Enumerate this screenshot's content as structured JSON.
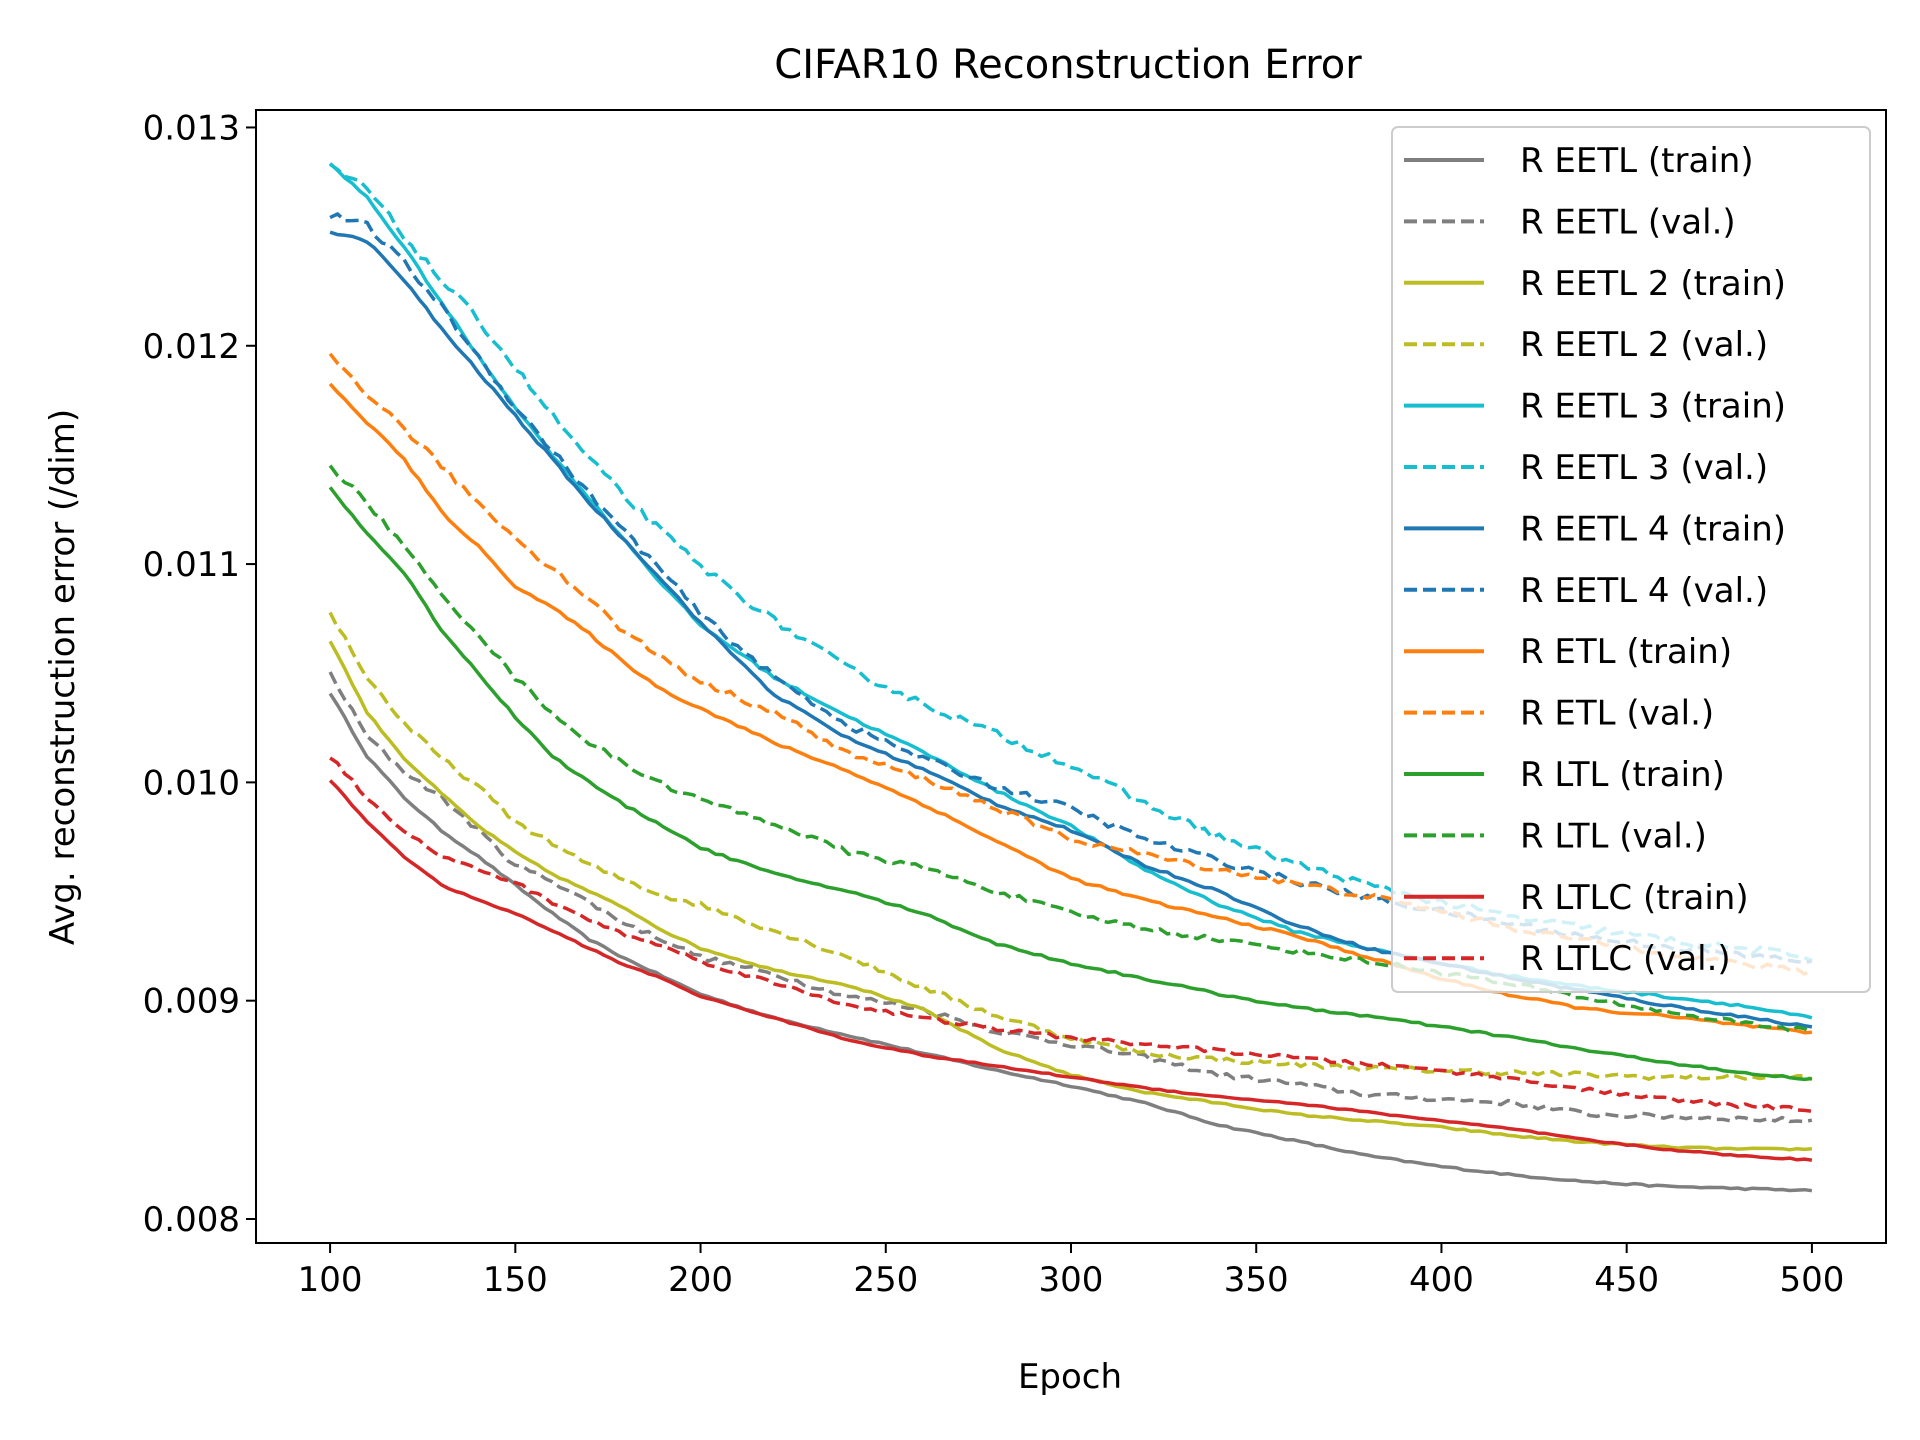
{
  "chart_data": {
    "type": "line",
    "title": "CIFAR10 Reconstruction Error",
    "xlabel": "Epoch",
    "ylabel": "Avg. reconstruction error (/dim)",
    "xlim": [
      80,
      520
    ],
    "ylim": [
      0.00789,
      0.01308
    ],
    "xticks": [
      100,
      150,
      200,
      250,
      300,
      350,
      400,
      450,
      500
    ],
    "yticks": [
      0.008,
      0.009,
      0.01,
      0.011,
      0.012,
      0.013
    ],
    "xtick_labels": [
      "100",
      "150",
      "200",
      "250",
      "300",
      "350",
      "400",
      "450",
      "500"
    ],
    "ytick_labels": [
      "0.008",
      "0.009",
      "0.010",
      "0.011",
      "0.012",
      "0.013"
    ],
    "grid": false,
    "legend_position": "top-right",
    "series": [
      {
        "name": "R EETL (train)",
        "color": "#7f7f7f",
        "dash": "solid",
        "noise": 0.2,
        "x": [
          100,
          110,
          120,
          130,
          140,
          150,
          160,
          170,
          180,
          190,
          200,
          220,
          240,
          260,
          280,
          300,
          320,
          340,
          360,
          380,
          400,
          420,
          440,
          460,
          480,
          500
        ],
        "y": [
          0.01041,
          0.01012,
          0.00993,
          0.00978,
          0.00966,
          0.00953,
          0.0094,
          0.00928,
          0.00919,
          0.00911,
          0.00903,
          0.00892,
          0.00884,
          0.00876,
          0.00868,
          0.00861,
          0.00853,
          0.00843,
          0.00836,
          0.00829,
          0.00824,
          0.0082,
          0.00817,
          0.00815,
          0.00814,
          0.00813
        ]
      },
      {
        "name": "R EETL (val.)",
        "color": "#7f7f7f",
        "dash": "dashed",
        "noise": 0.6,
        "x": [
          100,
          110,
          120,
          130,
          140,
          150,
          160,
          170,
          180,
          190,
          200,
          220,
          240,
          260,
          280,
          300,
          320,
          340,
          360,
          380,
          400,
          420,
          440,
          460,
          480,
          500
        ],
        "y": [
          0.0105,
          0.01021,
          0.01005,
          0.00993,
          0.00978,
          0.00962,
          0.00955,
          0.00945,
          0.00935,
          0.00928,
          0.0092,
          0.00912,
          0.00902,
          0.00896,
          0.00886,
          0.0088,
          0.00874,
          0.00866,
          0.00862,
          0.00857,
          0.00855,
          0.00853,
          0.00848,
          0.00847,
          0.00846,
          0.00845
        ]
      },
      {
        "name": "R EETL 2 (train)",
        "color": "#bcbd22",
        "dash": "solid",
        "noise": 0.2,
        "x": [
          100,
          110,
          120,
          130,
          140,
          150,
          160,
          170,
          180,
          190,
          200,
          220,
          240,
          260,
          280,
          300,
          320,
          340,
          360,
          380,
          400,
          420,
          440,
          460,
          480,
          500
        ],
        "y": [
          0.01065,
          0.01032,
          0.01011,
          0.00995,
          0.0098,
          0.00968,
          0.00958,
          0.0095,
          0.00942,
          0.00932,
          0.00924,
          0.00914,
          0.00907,
          0.00896,
          0.00878,
          0.00866,
          0.00858,
          0.00853,
          0.00848,
          0.00845,
          0.00842,
          0.00838,
          0.00835,
          0.00833,
          0.00832,
          0.00832
        ]
      },
      {
        "name": "R EETL 2 (val.)",
        "color": "#bcbd22",
        "dash": "dashed",
        "noise": 0.6,
        "x": [
          100,
          110,
          120,
          130,
          140,
          150,
          160,
          170,
          180,
          190,
          200,
          220,
          240,
          260,
          280,
          300,
          320,
          340,
          360,
          380,
          400,
          420,
          440,
          460,
          480,
          500
        ],
        "y": [
          0.01078,
          0.01048,
          0.01027,
          0.01011,
          0.00998,
          0.00982,
          0.00972,
          0.00962,
          0.00955,
          0.00948,
          0.00944,
          0.00932,
          0.0092,
          0.00906,
          0.00893,
          0.00883,
          0.00876,
          0.00873,
          0.00871,
          0.00869,
          0.00868,
          0.00867,
          0.00866,
          0.00865,
          0.00865,
          0.00865
        ]
      },
      {
        "name": "R EETL 3 (train)",
        "color": "#17becf",
        "dash": "solid",
        "noise": 0.3,
        "x": [
          100,
          110,
          120,
          130,
          140,
          150,
          160,
          170,
          180,
          190,
          200,
          220,
          240,
          260,
          280,
          300,
          320,
          340,
          360,
          380,
          400,
          420,
          440,
          460,
          480,
          500
        ],
        "y": [
          0.01283,
          0.01268,
          0.01245,
          0.0122,
          0.01195,
          0.01172,
          0.0115,
          0.0113,
          0.0111,
          0.0109,
          0.01072,
          0.01048,
          0.0103,
          0.01014,
          0.00996,
          0.0098,
          0.0096,
          0.00944,
          0.00932,
          0.00924,
          0.00917,
          0.00911,
          0.00906,
          0.00902,
          0.00898,
          0.00892
        ]
      },
      {
        "name": "R EETL 3 (val.)",
        "color": "#17becf",
        "dash": "dashed",
        "noise": 0.9,
        "x": [
          100,
          110,
          120,
          130,
          140,
          150,
          160,
          170,
          180,
          190,
          200,
          220,
          240,
          260,
          280,
          300,
          320,
          340,
          360,
          380,
          400,
          420,
          440,
          460,
          480,
          500
        ],
        "y": [
          0.01282,
          0.01272,
          0.0125,
          0.0123,
          0.01212,
          0.0119,
          0.01168,
          0.01148,
          0.0113,
          0.01114,
          0.01099,
          0.01074,
          0.01052,
          0.01036,
          0.01022,
          0.01008,
          0.0099,
          0.00975,
          0.00963,
          0.00953,
          0.00945,
          0.00938,
          0.00933,
          0.00928,
          0.00924,
          0.0092
        ]
      },
      {
        "name": "R EETL 4 (train)",
        "color": "#1f77b4",
        "dash": "solid",
        "noise": 0.3,
        "x": [
          100,
          110,
          120,
          130,
          140,
          150,
          160,
          170,
          180,
          190,
          200,
          220,
          240,
          260,
          280,
          300,
          320,
          340,
          360,
          380,
          400,
          420,
          440,
          460,
          480,
          500
        ],
        "y": [
          0.01252,
          0.01248,
          0.0123,
          0.01208,
          0.01188,
          0.01168,
          0.01148,
          0.01128,
          0.0111,
          0.01092,
          0.01073,
          0.0104,
          0.0102,
          0.01006,
          0.0099,
          0.00978,
          0.00962,
          0.0095,
          0.00935,
          0.00924,
          0.00917,
          0.0091,
          0.00904,
          0.00898,
          0.00893,
          0.00888
        ]
      },
      {
        "name": "R EETL 4 (val.)",
        "color": "#1f77b4",
        "dash": "dashed",
        "noise": 0.8,
        "x": [
          100,
          110,
          120,
          130,
          140,
          150,
          160,
          170,
          180,
          190,
          200,
          220,
          240,
          260,
          280,
          300,
          320,
          340,
          360,
          380,
          400,
          420,
          440,
          460,
          480,
          500
        ],
        "y": [
          0.0126,
          0.01255,
          0.01238,
          0.01218,
          0.01195,
          0.01172,
          0.01152,
          0.01132,
          0.01114,
          0.01096,
          0.01077,
          0.01048,
          0.01026,
          0.01011,
          0.00998,
          0.00988,
          0.00974,
          0.00964,
          0.00955,
          0.00947,
          0.00941,
          0.00935,
          0.00929,
          0.00925,
          0.00921,
          0.00918
        ]
      },
      {
        "name": "R ETL (train)",
        "color": "#ff7f0e",
        "dash": "solid",
        "noise": 0.3,
        "x": [
          100,
          110,
          120,
          130,
          140,
          150,
          160,
          170,
          180,
          190,
          200,
          220,
          240,
          260,
          280,
          300,
          320,
          340,
          360,
          380,
          400,
          420,
          440,
          460,
          480,
          500
        ],
        "y": [
          0.01182,
          0.01165,
          0.01148,
          0.01124,
          0.01108,
          0.0109,
          0.0108,
          0.01068,
          0.01054,
          0.01042,
          0.01034,
          0.01018,
          0.01005,
          0.0099,
          0.00973,
          0.00956,
          0.00946,
          0.00938,
          0.0093,
          0.0092,
          0.0091,
          0.00902,
          0.00896,
          0.00893,
          0.00889,
          0.00885
        ]
      },
      {
        "name": "R ETL (val.)",
        "color": "#ff7f0e",
        "dash": "dashed",
        "noise": 0.7,
        "x": [
          100,
          110,
          120,
          130,
          140,
          150,
          160,
          170,
          180,
          190,
          200,
          220,
          240,
          260,
          280,
          300,
          320,
          340,
          360,
          380,
          400,
          420,
          440,
          460,
          480,
          500
        ],
        "y": [
          0.01196,
          0.01178,
          0.01162,
          0.01145,
          0.01128,
          0.01112,
          0.01098,
          0.01084,
          0.01068,
          0.01057,
          0.01046,
          0.01032,
          0.01013,
          0.01002,
          0.00988,
          0.00974,
          0.00967,
          0.0096,
          0.00954,
          0.00948,
          0.00941,
          0.00933,
          0.00927,
          0.00922,
          0.00917,
          0.00913
        ]
      },
      {
        "name": "R LTL (train)",
        "color": "#2ca02c",
        "dash": "solid",
        "noise": 0.25,
        "x": [
          100,
          110,
          120,
          130,
          140,
          150,
          160,
          170,
          180,
          190,
          200,
          220,
          240,
          260,
          280,
          300,
          320,
          340,
          360,
          380,
          400,
          420,
          440,
          460,
          480,
          500
        ],
        "y": [
          0.01135,
          0.01114,
          0.01096,
          0.0107,
          0.0105,
          0.0103,
          0.01012,
          0.01,
          0.00989,
          0.0098,
          0.0097,
          0.00958,
          0.0095,
          0.0094,
          0.00926,
          0.00917,
          0.0091,
          0.00903,
          0.00897,
          0.00893,
          0.00888,
          0.00883,
          0.00877,
          0.00872,
          0.00867,
          0.00864
        ]
      },
      {
        "name": "R LTL (val.)",
        "color": "#2ca02c",
        "dash": "dashed",
        "noise": 0.6,
        "x": [
          100,
          110,
          120,
          130,
          140,
          150,
          160,
          170,
          180,
          190,
          200,
          220,
          240,
          260,
          280,
          300,
          320,
          340,
          360,
          380,
          400,
          420,
          440,
          460,
          480,
          500
        ],
        "y": [
          0.01145,
          0.01128,
          0.01108,
          0.01086,
          0.01068,
          0.01048,
          0.01032,
          0.01018,
          0.01008,
          0.00999,
          0.00992,
          0.00981,
          0.00968,
          0.00961,
          0.0095,
          0.0094,
          0.00933,
          0.00928,
          0.00923,
          0.00918,
          0.00913,
          0.00907,
          0.00901,
          0.00895,
          0.0089,
          0.00886
        ]
      },
      {
        "name": "R LTLC (train)",
        "color": "#d62728",
        "dash": "solid",
        "noise": 0.15,
        "x": [
          100,
          110,
          120,
          130,
          140,
          150,
          160,
          170,
          180,
          190,
          200,
          220,
          240,
          260,
          280,
          300,
          320,
          340,
          360,
          380,
          400,
          420,
          440,
          460,
          480,
          500
        ],
        "y": [
          0.01001,
          0.00982,
          0.00966,
          0.00953,
          0.00946,
          0.0094,
          0.00932,
          0.00924,
          0.00916,
          0.0091,
          0.00902,
          0.00892,
          0.00882,
          0.00875,
          0.0087,
          0.00865,
          0.0086,
          0.00856,
          0.00853,
          0.00849,
          0.00845,
          0.00841,
          0.00836,
          0.00832,
          0.00829,
          0.00827
        ]
      },
      {
        "name": "R LTLC (val.)",
        "color": "#d62728",
        "dash": "dashed",
        "noise": 0.45,
        "x": [
          100,
          110,
          120,
          130,
          140,
          150,
          160,
          170,
          180,
          190,
          200,
          220,
          240,
          260,
          280,
          300,
          320,
          340,
          360,
          380,
          400,
          420,
          440,
          460,
          480,
          500
        ],
        "y": [
          0.01012,
          0.00993,
          0.00978,
          0.00966,
          0.0096,
          0.00954,
          0.00945,
          0.00937,
          0.0093,
          0.00925,
          0.00918,
          0.00908,
          0.00898,
          0.00892,
          0.00887,
          0.00883,
          0.0088,
          0.00877,
          0.00874,
          0.00871,
          0.00868,
          0.00864,
          0.00859,
          0.00855,
          0.00852,
          0.0085
        ]
      }
    ]
  }
}
